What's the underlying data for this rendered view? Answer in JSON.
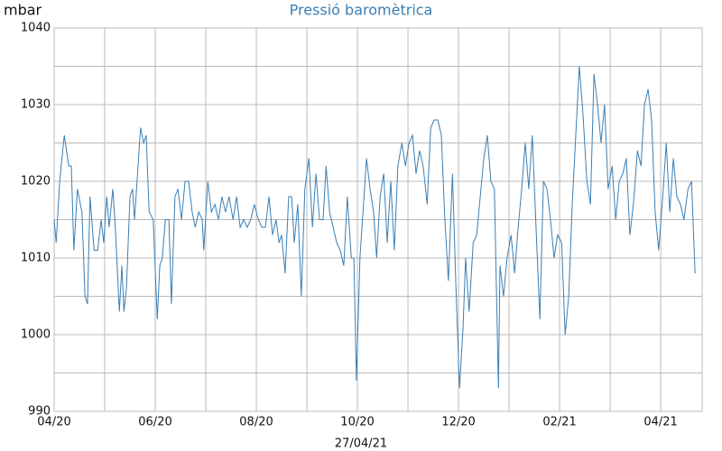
{
  "chart_data": {
    "type": "line",
    "title": "Pressió baromètrica",
    "y_label": "mbar",
    "date": "27/04/21",
    "x": [
      0,
      0.04,
      0.11,
      0.2,
      0.29,
      0.34,
      0.39,
      0.46,
      0.55,
      0.61,
      0.66,
      0.71,
      0.79,
      0.86,
      0.93,
      0.98,
      1.04,
      1.09,
      1.16,
      1.21,
      1.29,
      1.34,
      1.38,
      1.43,
      1.5,
      1.55,
      1.59,
      1.66,
      1.71,
      1.77,
      1.82,
      1.88,
      1.96,
      2.04,
      2.09,
      2.14,
      2.2,
      2.27,
      2.32,
      2.39,
      2.45,
      2.52,
      2.59,
      2.66,
      2.73,
      2.79,
      2.86,
      2.93,
      2.96,
      3.04,
      3.11,
      3.18,
      3.25,
      3.32,
      3.39,
      3.46,
      3.54,
      3.61,
      3.68,
      3.75,
      3.82,
      3.89,
      3.96,
      4.04,
      4.11,
      4.18,
      4.25,
      4.32,
      4.39,
      4.45,
      4.5,
      4.57,
      4.64,
      4.7,
      4.75,
      4.82,
      4.89,
      4.96,
      5.04,
      5.11,
      5.18,
      5.25,
      5.32,
      5.38,
      5.45,
      5.52,
      5.59,
      5.66,
      5.73,
      5.8,
      5.88,
      5.93,
      5.98,
      6.05,
      6.13,
      6.18,
      6.25,
      6.32,
      6.38,
      6.45,
      6.52,
      6.59,
      6.66,
      6.73,
      6.8,
      6.88,
      6.95,
      7.02,
      7.09,
      7.16,
      7.23,
      7.3,
      7.38,
      7.45,
      7.52,
      7.59,
      7.66,
      7.73,
      7.8,
      7.88,
      7.95,
      8.02,
      8.09,
      8.14,
      8.21,
      8.29,
      8.36,
      8.43,
      8.5,
      8.57,
      8.64,
      8.71,
      8.79,
      8.82,
      8.89,
      8.96,
      9.04,
      9.11,
      9.18,
      9.25,
      9.32,
      9.39,
      9.46,
      9.54,
      9.61,
      9.68,
      9.75,
      9.82,
      9.89,
      9.96,
      10.04,
      10.11,
      10.18,
      10.25,
      10.32,
      10.39,
      10.46,
      10.54,
      10.61,
      10.68,
      10.75,
      10.82,
      10.89,
      10.96,
      11.04,
      11.11,
      11.18,
      11.25,
      11.32,
      11.39,
      11.46,
      11.54,
      11.61,
      11.68,
      11.75,
      11.82,
      11.89,
      11.96,
      12.04,
      12.11,
      12.18,
      12.25,
      12.32,
      12.39,
      12.46,
      12.54,
      12.61,
      12.68
    ],
    "series": [
      {
        "name": "Pressió",
        "color": "#3a7fb5",
        "values": [
          1015,
          1012,
          1020,
          1026,
          1022,
          1022,
          1011,
          1019,
          1016,
          1005,
          1004,
          1018,
          1011,
          1011,
          1015,
          1012,
          1018,
          1014,
          1019,
          1014,
          1003,
          1009,
          1003,
          1006,
          1018,
          1019,
          1015,
          1022,
          1027,
          1025,
          1026,
          1016,
          1015,
          1002,
          1009,
          1010,
          1015,
          1015,
          1004,
          1018,
          1019,
          1015,
          1020,
          1020,
          1016,
          1014,
          1016,
          1015,
          1011,
          1020,
          1016,
          1017,
          1015,
          1018,
          1016,
          1018,
          1015,
          1018,
          1014,
          1015,
          1014,
          1015,
          1017,
          1015,
          1014,
          1014,
          1018,
          1013,
          1015,
          1012,
          1013,
          1008,
          1018,
          1018,
          1012,
          1017,
          1005,
          1019,
          1023,
          1014,
          1021,
          1015,
          1015,
          1022,
          1016,
          1014,
          1012,
          1011,
          1009,
          1018,
          1010,
          1010,
          994,
          1010,
          1018,
          1023,
          1019,
          1016,
          1010,
          1018,
          1021,
          1012,
          1020,
          1011,
          1022,
          1025,
          1022,
          1025,
          1026,
          1021,
          1024,
          1022,
          1017,
          1027,
          1028,
          1028,
          1026,
          1015,
          1007,
          1021,
          1006,
          993,
          1001,
          1010,
          1003,
          1012,
          1013,
          1018,
          1023,
          1026,
          1020,
          1019,
          993,
          1009,
          1005,
          1010,
          1013,
          1008,
          1014,
          1019,
          1025,
          1019,
          1026,
          1013,
          1002,
          1020,
          1019,
          1015,
          1010,
          1013,
          1012,
          1000,
          1005,
          1017,
          1026,
          1035,
          1029,
          1020,
          1017,
          1034,
          1030,
          1025,
          1030,
          1019,
          1022,
          1015,
          1020,
          1021,
          1023,
          1013,
          1017,
          1024,
          1022,
          1030,
          1032,
          1028,
          1016,
          1011,
          1018,
          1025,
          1016,
          1023,
          1018,
          1017,
          1015,
          1019,
          1020,
          1008
        ]
      }
    ],
    "xlim": [
      0,
      12.82
    ],
    "ylim": [
      990,
      1040
    ],
    "xticks": [
      {
        "value": 0,
        "label": "04/20"
      },
      {
        "value": 2,
        "label": "06/20"
      },
      {
        "value": 4,
        "label": "08/20"
      },
      {
        "value": 6,
        "label": "10/20"
      },
      {
        "value": 8,
        "label": "12/20"
      },
      {
        "value": 10,
        "label": "02/21"
      },
      {
        "value": 12,
        "label": "04/21"
      }
    ],
    "xminor": [
      1,
      3,
      5,
      7,
      9,
      11
    ],
    "yticks": [
      990,
      1000,
      1010,
      1020,
      1030,
      1040
    ],
    "yminor": [
      995,
      1005,
      1015,
      1025,
      1035
    ],
    "grid": true
  }
}
